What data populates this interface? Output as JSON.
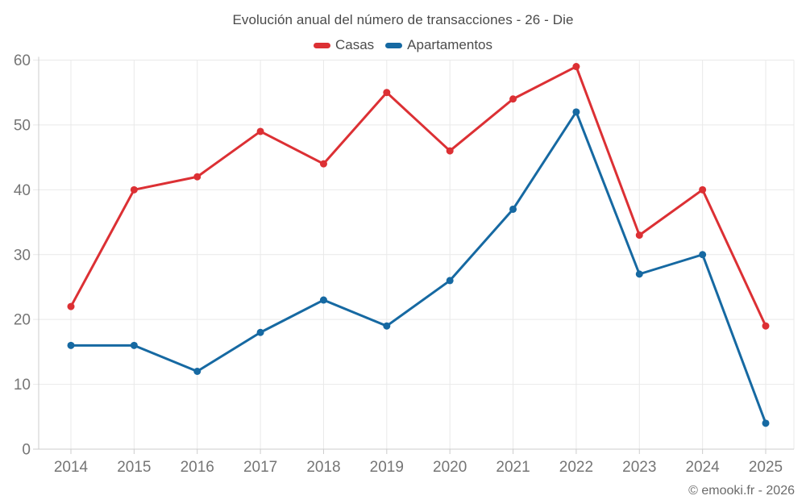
{
  "watermark": "© emooki.fr - 2026",
  "chart_data": {
    "type": "line",
    "title": "Evolución anual del número de transacciones - 26 - Die",
    "categories": [
      "2014",
      "2015",
      "2016",
      "2017",
      "2018",
      "2019",
      "2020",
      "2021",
      "2022",
      "2023",
      "2024",
      "2025"
    ],
    "series": [
      {
        "name": "Casas",
        "color": "#dc3034",
        "values": [
          22,
          40,
          42,
          49,
          44,
          55,
          46,
          54,
          59,
          33,
          40,
          19
        ]
      },
      {
        "name": "Apartamentos",
        "color": "#1669a2",
        "values": [
          16,
          16,
          12,
          18,
          23,
          19,
          26,
          37,
          52,
          27,
          30,
          4
        ]
      }
    ],
    "xlabel": "",
    "ylabel": "",
    "ylim": [
      0,
      60
    ],
    "yticks": [
      0,
      10,
      20,
      30,
      40,
      50,
      60
    ],
    "grid": true,
    "legend_position": "top",
    "colors": {
      "gridline": "#e9e9e9",
      "axis_line": "#cccccc",
      "tick_label": "#757575",
      "title_text": "#4a4a4a",
      "watermark_text": "#6b6b6b"
    }
  }
}
